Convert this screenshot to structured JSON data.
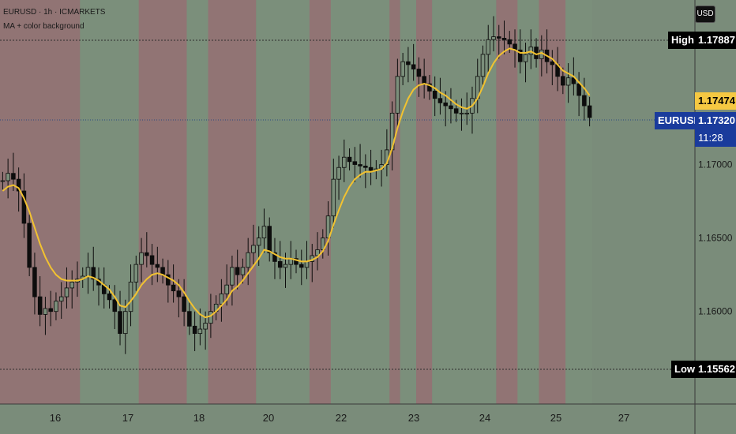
{
  "header": {
    "symbol_line": "EURUSD · 1h · ICMARKETS",
    "indicator_line": "MA + color background"
  },
  "currency_button": "USD",
  "price_axis": {
    "ticks": [
      "1.17000",
      "1.16500",
      "1.16000"
    ]
  },
  "markers": {
    "high": {
      "label": "High",
      "value": "1.17887"
    },
    "low": {
      "label": "Low",
      "value": "1.15562"
    },
    "ma_value": "1.17474",
    "symbol_label": "EURUSD",
    "last_price": "1.17320",
    "countdown": "11:28"
  },
  "colors": {
    "bg_bullish": "#7b8f7b",
    "bg_bearish": "#917474",
    "candle": "#0d0d0d",
    "ma_line": "#f2c230",
    "symbol_tag": "#1a3b9c",
    "ma_tag": "#f5c842"
  },
  "chart_data": {
    "type": "line",
    "description": "EURUSD 1h candlesticks with moving average and bull/bear background",
    "x_ticks": [
      "16",
      "17",
      "18",
      "20",
      "22",
      "23",
      "24",
      "25",
      "27"
    ],
    "ylim": [
      1.1537,
      1.1812
    ],
    "series": [
      {
        "name": "Close",
        "values": [
          1.1689,
          1.1694,
          1.169,
          1.1682,
          1.166,
          1.163,
          1.161,
          1.1598,
          1.1602,
          1.16,
          1.1607,
          1.161,
          1.1616,
          1.162,
          1.1622,
          1.1624,
          1.163,
          1.1622,
          1.1618,
          1.1612,
          1.1608,
          1.16,
          1.1585,
          1.16,
          1.162,
          1.1632,
          1.164,
          1.1638,
          1.1632,
          1.163,
          1.1625,
          1.1618,
          1.1614,
          1.161,
          1.16,
          1.159,
          1.1585,
          1.1588,
          1.1592,
          1.16,
          1.1605,
          1.1612,
          1.1618,
          1.163,
          1.1625,
          1.163,
          1.164,
          1.1645,
          1.165,
          1.1658,
          1.164,
          1.1634,
          1.163,
          1.1632,
          1.1636,
          1.1632,
          1.163,
          1.1634,
          1.1638,
          1.1642,
          1.165,
          1.1665,
          1.169,
          1.1698,
          1.1705,
          1.1702,
          1.17,
          1.1699,
          1.1698,
          1.1696,
          1.1697,
          1.17,
          1.171,
          1.1735,
          1.176,
          1.177,
          1.1768,
          1.1765,
          1.176,
          1.1755,
          1.175,
          1.1745,
          1.1742,
          1.174,
          1.1738,
          1.1735,
          1.1735,
          1.1735,
          1.1745,
          1.176,
          1.1775,
          1.1785,
          1.1787,
          1.1786,
          1.1785,
          1.1782,
          1.1778,
          1.177,
          1.1775,
          1.178,
          1.1772,
          1.1778,
          1.177,
          1.1768,
          1.176,
          1.1754,
          1.1759,
          1.1755,
          1.1747,
          1.174,
          1.1732
        ]
      },
      {
        "name": "MA",
        "values": [
          1.1682,
          1.1685,
          1.1686,
          1.1684,
          1.1677,
          1.1668,
          1.1657,
          1.1646,
          1.1637,
          1.163,
          1.1625,
          1.1622,
          1.1621,
          1.1621,
          1.1621,
          1.1622,
          1.1624,
          1.1623,
          1.1621,
          1.1618,
          1.1615,
          1.161,
          1.1604,
          1.1603,
          1.1607,
          1.1612,
          1.1618,
          1.1622,
          1.1625,
          1.1626,
          1.1625,
          1.1623,
          1.1621,
          1.1618,
          1.1613,
          1.1607,
          1.1602,
          1.1598,
          1.1596,
          1.1597,
          1.16,
          1.1604,
          1.1608,
          1.1614,
          1.1617,
          1.1621,
          1.1626,
          1.1631,
          1.1636,
          1.1642,
          1.1641,
          1.1639,
          1.1637,
          1.1636,
          1.1636,
          1.1635,
          1.1634,
          1.1634,
          1.1635,
          1.1637,
          1.1641,
          1.1648,
          1.1659,
          1.1669,
          1.1678,
          1.1685,
          1.169,
          1.1693,
          1.1695,
          1.1695,
          1.1696,
          1.1697,
          1.1701,
          1.1711,
          1.1725,
          1.1736,
          1.1745,
          1.1751,
          1.1754,
          1.1755,
          1.1754,
          1.1752,
          1.1749,
          1.1747,
          1.1744,
          1.1741,
          1.1739,
          1.1738,
          1.174,
          1.1745,
          1.1753,
          1.1762,
          1.1769,
          1.1774,
          1.1777,
          1.1779,
          1.1778,
          1.1776,
          1.1776,
          1.1777,
          1.1775,
          1.1776,
          1.1774,
          1.1772,
          1.1768,
          1.1764,
          1.1762,
          1.176,
          1.1756,
          1.1752,
          1.1747
        ]
      }
    ],
    "background_bands": "alternating bullish (green-gray) and bearish (red-gray) vertical zones",
    "grid": false
  }
}
